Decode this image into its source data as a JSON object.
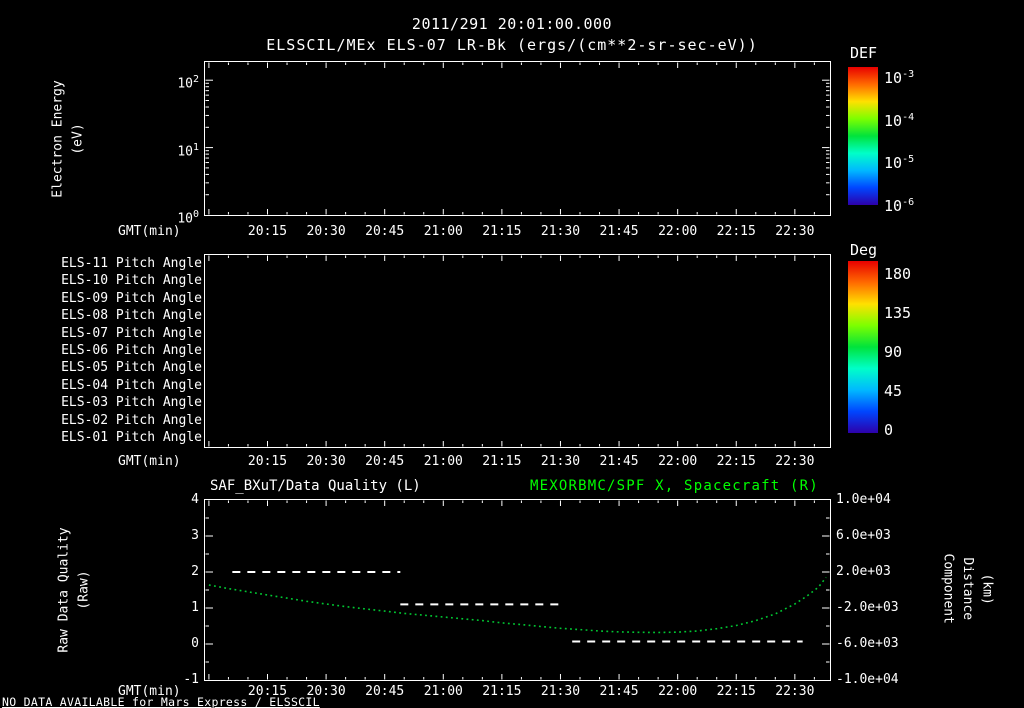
{
  "page": {
    "title": "2011/291 20:01:00.000",
    "subtitle": "ELSSCIL/MEx ELS-07 LR-Bk (ergs/(cm**2-sr-sec-eV))",
    "footer": "NO DATA AVAILABLE for Mars Express / ELSSCIL"
  },
  "colors": {
    "background": "#000000",
    "foreground": "#ffffff",
    "green_title": "#00ff00",
    "colormap": [
      "#e80000",
      "#ff6a00",
      "#ffe000",
      "#7dff00",
      "#00e33c",
      "#00ffc8",
      "#00b9ff",
      "#0046ff",
      "#2d00aa"
    ]
  },
  "time_axis": {
    "label": "GMT(min)",
    "start_minutes": 1199,
    "end_minutes": 1359,
    "ticks": [
      "20:15",
      "20:30",
      "20:45",
      "21:00",
      "21:15",
      "21:30",
      "21:45",
      "22:00",
      "22:15",
      "22:30"
    ],
    "minor_step_minutes": 5
  },
  "chart_data": [
    {
      "id": "energy_spectrogram",
      "type": "heatmap",
      "title": "ELSSCIL/MEx ELS-07 LR-Bk (ergs/(cm**2-sr-sec-eV))",
      "xlabel": "GMT(min)",
      "ylabel_lines": [
        "Electron Energy",
        "(eV)"
      ],
      "y_scale": "log",
      "ylim_exponents": [
        0,
        2.27
      ],
      "y_ticks": [
        {
          "base": "10",
          "exp": "2"
        },
        {
          "base": "10",
          "exp": "1"
        },
        {
          "base": "10",
          "exp": "0"
        }
      ],
      "values": [],
      "note": "panel empty - no data plotted",
      "colorbar": {
        "title": "DEF",
        "scale": "log",
        "tick_labels": [
          {
            "base": "10",
            "exp": "-3"
          },
          {
            "base": "10",
            "exp": "-4"
          },
          {
            "base": "10",
            "exp": "-5"
          },
          {
            "base": "10",
            "exp": "-6"
          }
        ]
      }
    },
    {
      "id": "pitch_angle",
      "type": "heatmap",
      "xlabel": "GMT(min)",
      "row_labels": [
        "ELS-11 Pitch Angle",
        "ELS-10 Pitch Angle",
        "ELS-09 Pitch Angle",
        "ELS-08 Pitch Angle",
        "ELS-07 Pitch Angle",
        "ELS-06 Pitch Angle",
        "ELS-05 Pitch Angle",
        "ELS-04 Pitch Angle",
        "ELS-03 Pitch Angle",
        "ELS-02 Pitch Angle",
        "ELS-01 Pitch Angle"
      ],
      "values": [],
      "note": "panel empty - no data plotted",
      "colorbar": {
        "title": "Deg",
        "ticks": [
          180,
          135,
          90,
          45,
          0
        ]
      }
    },
    {
      "id": "quality_distance",
      "type": "line",
      "title_left": "SAF_BXuT/Data Quality (L)",
      "title_right": "MEXORBMC/SPF X, Spacecraft (R)",
      "xlabel": "GMT(min)",
      "ylabel_left_lines": [
        "Raw Data Quality",
        "(Raw)"
      ],
      "ylabel_right_lines": [
        "Component Distance",
        "(km)"
      ],
      "ylim_left": [
        -1,
        4
      ],
      "yticks_left": [
        4,
        3,
        2,
        1,
        0,
        -1
      ],
      "ylim_right": [
        -10000,
        10000
      ],
      "yticks_right": [
        {
          "value": 10000,
          "label": "1.0e+04"
        },
        {
          "value": 6000,
          "label": "6.0e+03"
        },
        {
          "value": 2000,
          "label": "2.0e+03"
        },
        {
          "value": -2000,
          "label": "-2.0e+03"
        },
        {
          "value": -6000,
          "label": "-6.0e+03"
        },
        {
          "value": -10000,
          "label": "-1.0e+04"
        }
      ],
      "series": [
        {
          "name": "SAF_BXuT/Data Quality",
          "axis": "left",
          "color": "#ffffff",
          "line_style": "dashed",
          "segments": [
            {
              "value": 2.0,
              "from": "20:06",
              "to": "20:49"
            },
            {
              "value": 1.1,
              "from": "20:49",
              "to": "21:30"
            },
            {
              "value": 0.07,
              "from": "21:33",
              "to": "22:32"
            }
          ]
        },
        {
          "name": "MEXORBMC/SPF X Spacecraft distance",
          "axis": "right",
          "color": "#00c832",
          "line_style": "dotted",
          "points": [
            {
              "t": "20:00",
              "v": 550
            },
            {
              "t": "20:05",
              "v": 150
            },
            {
              "t": "20:10",
              "v": -200
            },
            {
              "t": "20:15",
              "v": -550
            },
            {
              "t": "20:20",
              "v": -900
            },
            {
              "t": "20:25",
              "v": -1250
            },
            {
              "t": "20:30",
              "v": -1550
            },
            {
              "t": "20:35",
              "v": -1850
            },
            {
              "t": "20:40",
              "v": -2100
            },
            {
              "t": "20:45",
              "v": -2350
            },
            {
              "t": "20:50",
              "v": -2600
            },
            {
              "t": "20:55",
              "v": -2800
            },
            {
              "t": "21:00",
              "v": -3000
            },
            {
              "t": "21:05",
              "v": -3200
            },
            {
              "t": "21:10",
              "v": -3400
            },
            {
              "t": "21:15",
              "v": -3650
            },
            {
              "t": "21:20",
              "v": -3850
            },
            {
              "t": "21:25",
              "v": -4050
            },
            {
              "t": "21:30",
              "v": -4250
            },
            {
              "t": "21:35",
              "v": -4400
            },
            {
              "t": "21:40",
              "v": -4550
            },
            {
              "t": "21:45",
              "v": -4650
            },
            {
              "t": "21:50",
              "v": -4700
            },
            {
              "t": "21:55",
              "v": -4720
            },
            {
              "t": "22:00",
              "v": -4680
            },
            {
              "t": "22:05",
              "v": -4550
            },
            {
              "t": "22:10",
              "v": -4300
            },
            {
              "t": "22:15",
              "v": -3950
            },
            {
              "t": "22:20",
              "v": -3400
            },
            {
              "t": "22:25",
              "v": -2650
            },
            {
              "t": "22:30",
              "v": -1550
            },
            {
              "t": "22:33",
              "v": -700
            },
            {
              "t": "22:36",
              "v": 300
            },
            {
              "t": "22:38",
              "v": 1400
            }
          ]
        }
      ]
    }
  ]
}
